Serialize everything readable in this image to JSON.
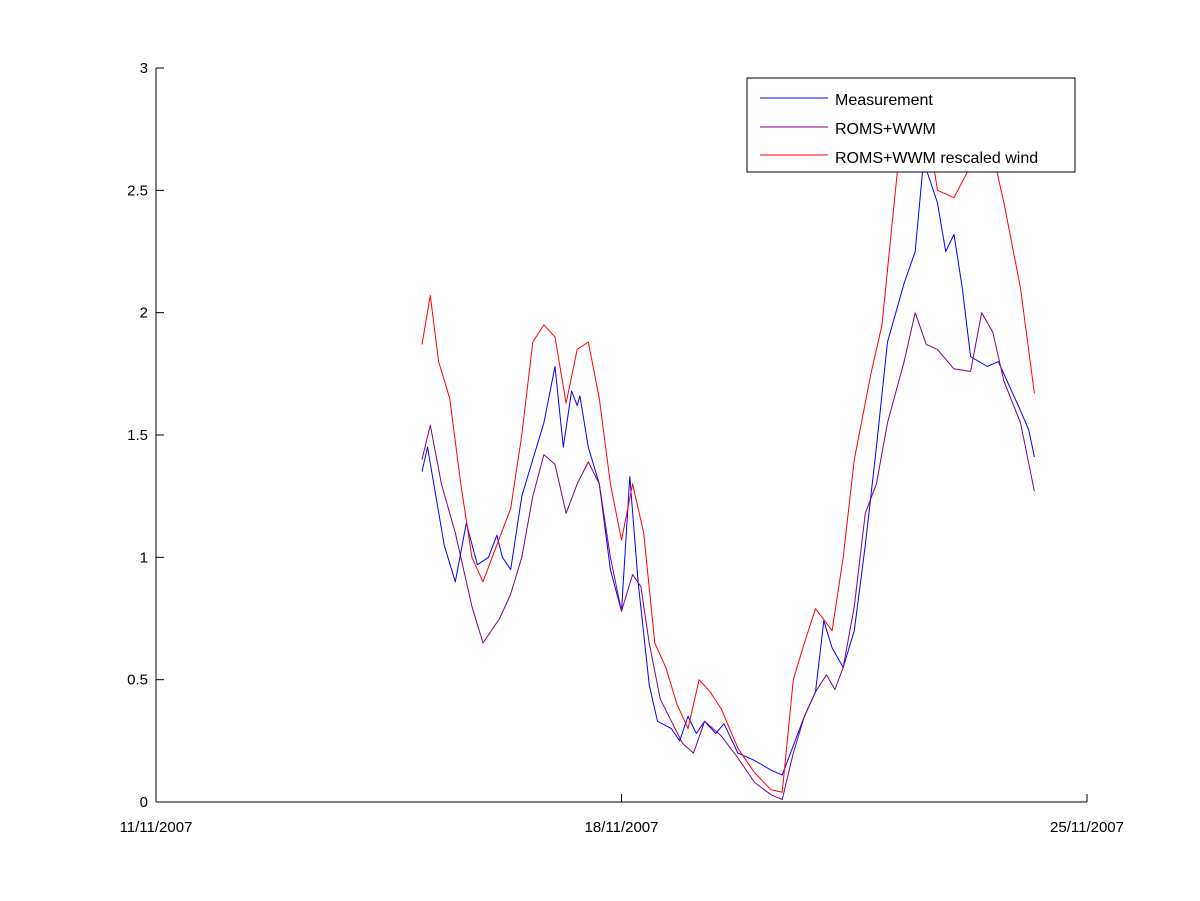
{
  "chart_data": {
    "type": "line",
    "title": "",
    "xlabel": "",
    "ylabel": "",
    "x_range": [
      "2007-11-11",
      "2007-11-25"
    ],
    "ylim": [
      0,
      3
    ],
    "xticks": [
      {
        "date": "2007-11-11",
        "label": "11/11/2007"
      },
      {
        "date": "2007-11-18",
        "label": "18/11/2007"
      },
      {
        "date": "2007-11-25",
        "label": "25/11/2007"
      }
    ],
    "yticks": [
      {
        "value": 0,
        "label": "0"
      },
      {
        "value": 0.5,
        "label": "0.5"
      },
      {
        "value": 1,
        "label": "1"
      },
      {
        "value": 1.5,
        "label": "1.5"
      },
      {
        "value": 2,
        "label": "2"
      },
      {
        "value": 2.5,
        "label": "2.5"
      },
      {
        "value": 3,
        "label": "3"
      }
    ],
    "grid": false,
    "legend_position": "top-right",
    "series": [
      {
        "name": "Measurement",
        "color": "#0000ff",
        "points": [
          [
            "2007-11-15 00:00",
            1.35
          ],
          [
            "2007-11-15 02:00",
            1.45
          ],
          [
            "2007-11-15 05:00",
            1.25
          ],
          [
            "2007-11-15 08:00",
            1.05
          ],
          [
            "2007-11-15 12:00",
            0.9
          ],
          [
            "2007-11-15 16:00",
            1.14
          ],
          [
            "2007-11-15 20:00",
            0.97
          ],
          [
            "2007-11-16 00:00",
            1.0
          ],
          [
            "2007-11-16 03:00",
            1.09
          ],
          [
            "2007-11-16 05:00",
            1.0
          ],
          [
            "2007-11-16 08:00",
            0.95
          ],
          [
            "2007-11-16 12:00",
            1.25
          ],
          [
            "2007-11-16 16:00",
            1.4
          ],
          [
            "2007-11-16 20:00",
            1.55
          ],
          [
            "2007-11-17 00:00",
            1.78
          ],
          [
            "2007-11-17 03:00",
            1.45
          ],
          [
            "2007-11-17 06:00",
            1.68
          ],
          [
            "2007-11-17 08:00",
            1.62
          ],
          [
            "2007-11-17 09:00",
            1.66
          ],
          [
            "2007-11-17 12:00",
            1.45
          ],
          [
            "2007-11-17 16:00",
            1.3
          ],
          [
            "2007-11-17 20:00",
            0.95
          ],
          [
            "2007-11-18 00:00",
            0.78
          ],
          [
            "2007-11-18 03:00",
            1.33
          ],
          [
            "2007-11-18 06:00",
            0.9
          ],
          [
            "2007-11-18 10:00",
            0.48
          ],
          [
            "2007-11-18 13:00",
            0.33
          ],
          [
            "2007-11-18 18:00",
            0.3
          ],
          [
            "2007-11-18 21:00",
            0.25
          ],
          [
            "2007-11-19 00:00",
            0.35
          ],
          [
            "2007-11-19 03:00",
            0.28
          ],
          [
            "2007-11-19 06:00",
            0.33
          ],
          [
            "2007-11-19 10:00",
            0.28
          ],
          [
            "2007-11-19 13:00",
            0.32
          ],
          [
            "2007-11-19 18:00",
            0.2
          ],
          [
            "2007-11-20 00:00",
            0.17
          ],
          [
            "2007-11-20 06:00",
            0.13
          ],
          [
            "2007-11-20 10:00",
            0.11
          ],
          [
            "2007-11-20 13:00",
            0.2
          ],
          [
            "2007-11-20 18:00",
            0.35
          ],
          [
            "2007-11-20 22:00",
            0.45
          ],
          [
            "2007-11-21 01:00",
            0.74
          ],
          [
            "2007-11-21 04:00",
            0.63
          ],
          [
            "2007-11-21 08:00",
            0.55
          ],
          [
            "2007-11-21 12:00",
            0.7
          ],
          [
            "2007-11-21 16:00",
            1.05
          ],
          [
            "2007-11-21 20:00",
            1.45
          ],
          [
            "2007-11-22 00:00",
            1.88
          ],
          [
            "2007-11-22 03:00",
            2.0
          ],
          [
            "2007-11-22 06:00",
            2.12
          ],
          [
            "2007-11-22 10:00",
            2.25
          ],
          [
            "2007-11-22 13:00",
            2.62
          ],
          [
            "2007-11-22 18:00",
            2.45
          ],
          [
            "2007-11-22 21:00",
            2.25
          ],
          [
            "2007-11-23 00:00",
            2.32
          ],
          [
            "2007-11-23 03:00",
            2.1
          ],
          [
            "2007-11-23 06:00",
            1.82
          ],
          [
            "2007-11-23 12:00",
            1.78
          ],
          [
            "2007-11-23 16:00",
            1.8
          ],
          [
            "2007-11-23 20:00",
            1.7
          ],
          [
            "2007-11-24 00:00",
            1.6
          ],
          [
            "2007-11-24 03:00",
            1.52
          ],
          [
            "2007-11-24 05:00",
            1.41
          ]
        ]
      },
      {
        "name": "ROMS+WWM",
        "color": "#800080",
        "points": [
          [
            "2007-11-15 00:00",
            1.4
          ],
          [
            "2007-11-15 03:00",
            1.54
          ],
          [
            "2007-11-15 07:00",
            1.3
          ],
          [
            "2007-11-15 12:00",
            1.1
          ],
          [
            "2007-11-15 18:00",
            0.8
          ],
          [
            "2007-11-15 22:00",
            0.65
          ],
          [
            "2007-11-16 04:00",
            0.75
          ],
          [
            "2007-11-16 08:00",
            0.85
          ],
          [
            "2007-11-16 12:00",
            1.0
          ],
          [
            "2007-11-16 16:00",
            1.25
          ],
          [
            "2007-11-16 20:00",
            1.42
          ],
          [
            "2007-11-17 00:00",
            1.38
          ],
          [
            "2007-11-17 04:00",
            1.18
          ],
          [
            "2007-11-17 08:00",
            1.3
          ],
          [
            "2007-11-17 12:00",
            1.39
          ],
          [
            "2007-11-17 16:00",
            1.3
          ],
          [
            "2007-11-17 20:00",
            1.0
          ],
          [
            "2007-11-18 00:00",
            0.78
          ],
          [
            "2007-11-18 04:00",
            0.93
          ],
          [
            "2007-11-18 07:00",
            0.88
          ],
          [
            "2007-11-18 10:00",
            0.65
          ],
          [
            "2007-11-18 14:00",
            0.42
          ],
          [
            "2007-11-18 18:00",
            0.33
          ],
          [
            "2007-11-18 22:00",
            0.24
          ],
          [
            "2007-11-19 02:00",
            0.2
          ],
          [
            "2007-11-19 06:00",
            0.33
          ],
          [
            "2007-11-19 12:00",
            0.27
          ],
          [
            "2007-11-19 18:00",
            0.18
          ],
          [
            "2007-11-20 00:00",
            0.08
          ],
          [
            "2007-11-20 06:00",
            0.03
          ],
          [
            "2007-11-20 10:00",
            0.01
          ],
          [
            "2007-11-20 14:00",
            0.2
          ],
          [
            "2007-11-20 18:00",
            0.35
          ],
          [
            "2007-11-20 22:00",
            0.45
          ],
          [
            "2007-11-21 02:00",
            0.52
          ],
          [
            "2007-11-21 05:00",
            0.46
          ],
          [
            "2007-11-21 08:00",
            0.55
          ],
          [
            "2007-11-21 12:00",
            0.8
          ],
          [
            "2007-11-21 16:00",
            1.18
          ],
          [
            "2007-11-21 20:00",
            1.3
          ],
          [
            "2007-11-22 00:00",
            1.55
          ],
          [
            "2007-11-22 06:00",
            1.8
          ],
          [
            "2007-11-22 10:00",
            2.0
          ],
          [
            "2007-11-22 14:00",
            1.87
          ],
          [
            "2007-11-22 18:00",
            1.85
          ],
          [
            "2007-11-23 00:00",
            1.77
          ],
          [
            "2007-11-23 06:00",
            1.76
          ],
          [
            "2007-11-23 10:00",
            2.0
          ],
          [
            "2007-11-23 14:00",
            1.92
          ],
          [
            "2007-11-23 18:00",
            1.72
          ],
          [
            "2007-11-24 00:00",
            1.55
          ],
          [
            "2007-11-24 05:00",
            1.27
          ]
        ]
      },
      {
        "name": "ROMS+WWM rescaled wind",
        "color": "#ff0000",
        "points": [
          [
            "2007-11-15 00:00",
            1.87
          ],
          [
            "2007-11-15 03:00",
            2.07
          ],
          [
            "2007-11-15 06:00",
            1.8
          ],
          [
            "2007-11-15 10:00",
            1.65
          ],
          [
            "2007-11-15 14:00",
            1.3
          ],
          [
            "2007-11-15 18:00",
            1.0
          ],
          [
            "2007-11-15 22:00",
            0.9
          ],
          [
            "2007-11-16 03:00",
            1.05
          ],
          [
            "2007-11-16 08:00",
            1.2
          ],
          [
            "2007-11-16 12:00",
            1.5
          ],
          [
            "2007-11-16 16:00",
            1.88
          ],
          [
            "2007-11-16 20:00",
            1.95
          ],
          [
            "2007-11-17 00:00",
            1.9
          ],
          [
            "2007-11-17 04:00",
            1.63
          ],
          [
            "2007-11-17 08:00",
            1.85
          ],
          [
            "2007-11-17 12:00",
            1.88
          ],
          [
            "2007-11-17 16:00",
            1.65
          ],
          [
            "2007-11-17 20:00",
            1.3
          ],
          [
            "2007-11-18 00:00",
            1.07
          ],
          [
            "2007-11-18 04:00",
            1.3
          ],
          [
            "2007-11-18 08:00",
            1.1
          ],
          [
            "2007-11-18 12:00",
            0.65
          ],
          [
            "2007-11-18 16:00",
            0.55
          ],
          [
            "2007-11-18 20:00",
            0.4
          ],
          [
            "2007-11-19 00:00",
            0.3
          ],
          [
            "2007-11-19 04:00",
            0.5
          ],
          [
            "2007-11-19 08:00",
            0.45
          ],
          [
            "2007-11-19 12:00",
            0.38
          ],
          [
            "2007-11-19 18:00",
            0.22
          ],
          [
            "2007-11-20 00:00",
            0.12
          ],
          [
            "2007-11-20 06:00",
            0.05
          ],
          [
            "2007-11-20 10:00",
            0.04
          ],
          [
            "2007-11-20 14:00",
            0.5
          ],
          [
            "2007-11-20 18:00",
            0.65
          ],
          [
            "2007-11-20 22:00",
            0.79
          ],
          [
            "2007-11-21 04:00",
            0.7
          ],
          [
            "2007-11-21 08:00",
            1.0
          ],
          [
            "2007-11-21 12:00",
            1.4
          ],
          [
            "2007-11-21 18:00",
            1.75
          ],
          [
            "2007-11-21 22:00",
            1.95
          ],
          [
            "2007-11-22 02:00",
            2.4
          ],
          [
            "2007-11-22 06:00",
            2.85
          ],
          [
            "2007-11-22 12:00",
            2.95
          ],
          [
            "2007-11-22 18:00",
            2.5
          ],
          [
            "2007-11-23 00:00",
            2.47
          ],
          [
            "2007-11-23 06:00",
            2.6
          ],
          [
            "2007-11-23 12:00",
            2.75
          ],
          [
            "2007-11-23 18:00",
            2.45
          ],
          [
            "2007-11-24 00:00",
            2.1
          ],
          [
            "2007-11-24 05:00",
            1.67
          ]
        ]
      }
    ]
  },
  "legend": {
    "items": [
      {
        "label": "Measurement",
        "color": "#0000ff"
      },
      {
        "label": "ROMS+WWM",
        "color": "#800080"
      },
      {
        "label": "ROMS+WWM rescaled wind",
        "color": "#ff0000"
      }
    ]
  }
}
